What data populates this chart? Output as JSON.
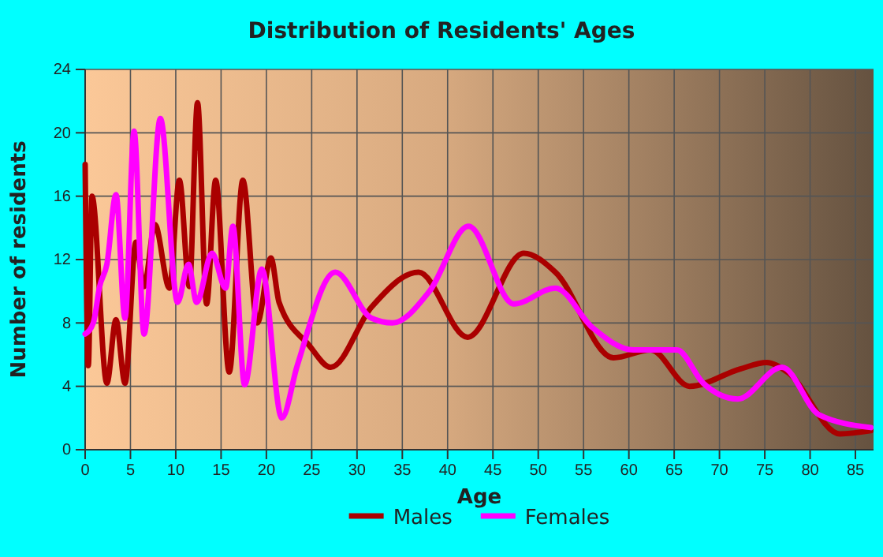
{
  "chart_data": {
    "type": "line",
    "title": "Distribution of Residents' Ages",
    "xlabel": "Age",
    "ylabel": "Number of residents",
    "xlim": [
      0,
      87
    ],
    "xticks": [
      0,
      5,
      10,
      15,
      20,
      25,
      30,
      35,
      40,
      45,
      50,
      55,
      60,
      65,
      70,
      75,
      80,
      85
    ],
    "ylim": [
      0,
      24
    ],
    "yticks": [
      0,
      4,
      8,
      12,
      16,
      20,
      24
    ],
    "grid": true,
    "legend": "bottom",
    "series": [
      {
        "name": "Males",
        "color": "#aa0000",
        "x": [
          0,
          0.35,
          0.75,
          2.4,
          3.4,
          4.4,
          5.6,
          6.5,
          7.7,
          9.3,
          10.4,
          11.5,
          12.4,
          13.4,
          14.4,
          15.9,
          17.4,
          19,
          20.5,
          21.4,
          24.7,
          27.1,
          31.6,
          36.8,
          42.2,
          48.4,
          51.9,
          58.3,
          62.4,
          66.7,
          72.3,
          75.2,
          77.5,
          83.3,
          86.7
        ],
        "values": [
          18,
          5.3,
          16,
          4.2,
          8.2,
          4.2,
          13.1,
          10.3,
          14.2,
          10.2,
          17,
          10.3,
          21.9,
          9.2,
          17,
          4.9,
          17,
          8,
          12.1,
          9.3,
          6.6,
          5.2,
          9,
          11.2,
          7.1,
          12.4,
          11.2,
          5.8,
          6.3,
          4,
          5.1,
          5.5,
          4.9,
          1,
          1.2
        ]
      },
      {
        "name": "Females",
        "color": "#ff00ff",
        "x": [
          0,
          0.9,
          1.6,
          2.4,
          3.4,
          4.4,
          5.4,
          6.5,
          8.3,
          10.2,
          11.4,
          12.3,
          14,
          15.5,
          16.3,
          17.6,
          19.5,
          21.7,
          23.4,
          27.6,
          31.6,
          33.9,
          38,
          42.3,
          47.3,
          51.9,
          56,
          60.5,
          65.3,
          68.2,
          72,
          76.9,
          81,
          86.7
        ],
        "values": [
          7.3,
          8,
          10.3,
          11.7,
          16.1,
          8.3,
          20.1,
          7.3,
          20.9,
          9.3,
          11.7,
          9.3,
          12.4,
          10.2,
          14.1,
          4.1,
          11.4,
          2,
          5.3,
          11.2,
          8.3,
          8,
          10,
          14.1,
          9.2,
          10.2,
          7.7,
          6.3,
          6.3,
          4.2,
          3.2,
          5.2,
          2.2,
          1.4
        ]
      }
    ]
  }
}
